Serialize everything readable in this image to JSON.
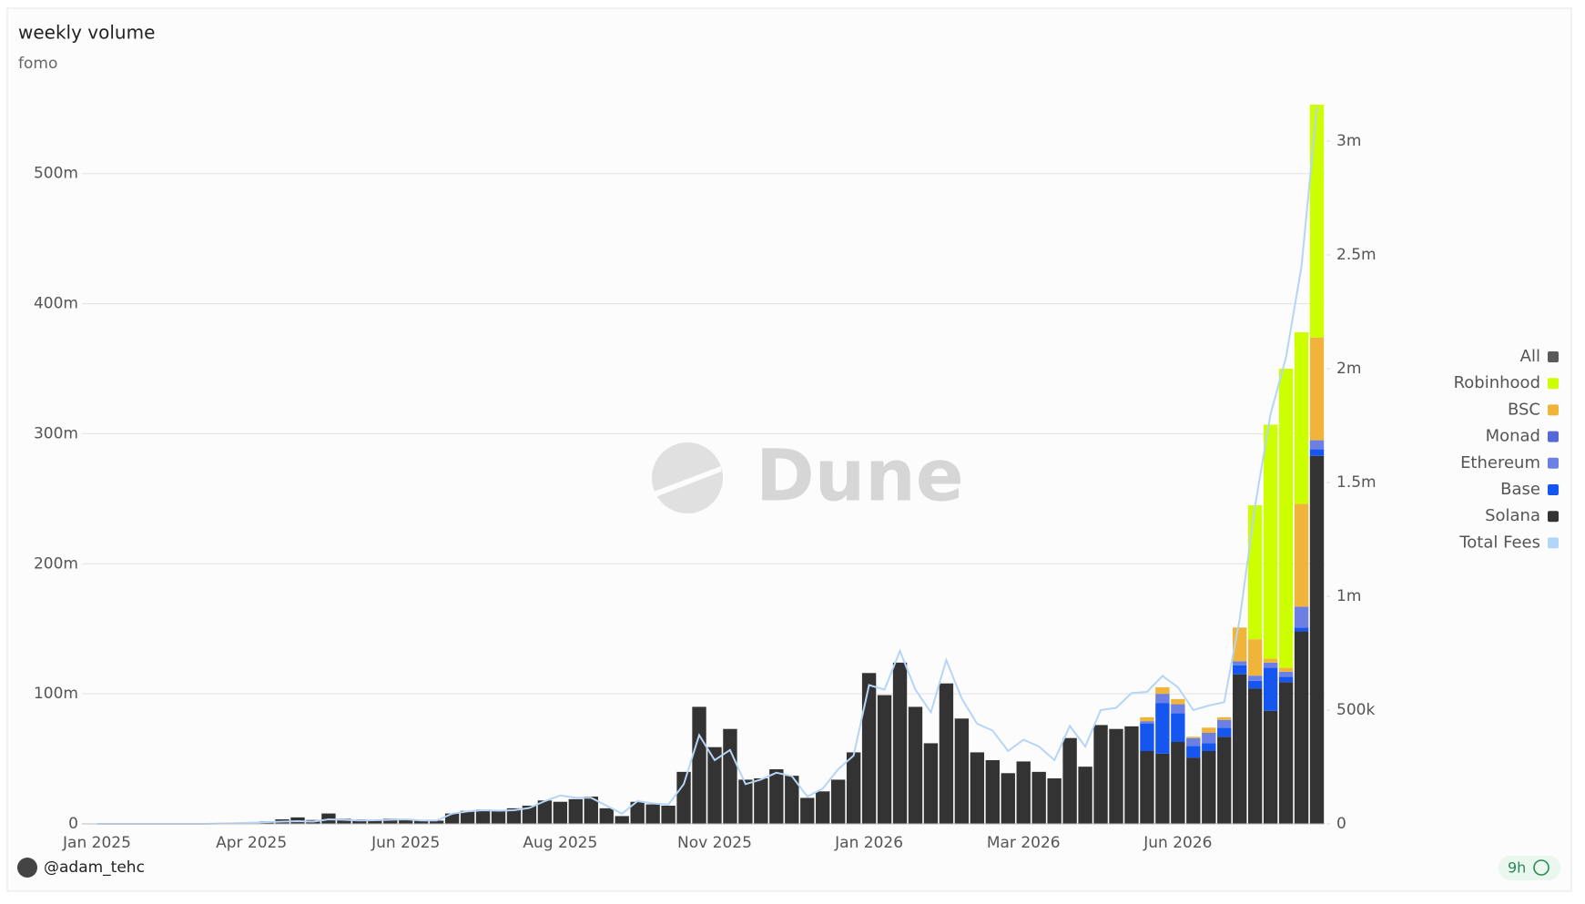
{
  "chart_data": {
    "type": "bar",
    "stacked": true,
    "title": "weekly volume",
    "subtitle": "fomo",
    "watermark": "Dune",
    "legend_all": "All",
    "legend_all_color": "#5a5a5a",
    "legend_position": "right",
    "grid": true,
    "categories": [
      "Jan 2025",
      null,
      null,
      null,
      null,
      null,
      null,
      null,
      null,
      null,
      "Apr 2025",
      null,
      null,
      null,
      null,
      null,
      null,
      null,
      null,
      null,
      "Jun 2025",
      null,
      null,
      null,
      null,
      null,
      null,
      null,
      null,
      null,
      "Aug 2025",
      null,
      null,
      null,
      null,
      null,
      null,
      null,
      null,
      null,
      "Nov 2025",
      null,
      null,
      null,
      null,
      null,
      null,
      null,
      null,
      null,
      "Jan 2026",
      null,
      null,
      null,
      null,
      null,
      null,
      null,
      null,
      null,
      "Mar 2026",
      null,
      null,
      null,
      null,
      null,
      null,
      null,
      null,
      null,
      "Jun 2026",
      null,
      null,
      null,
      null,
      null,
      null,
      null,
      null,
      null
    ],
    "ylim": [
      0,
      560000000
    ],
    "yticks": [
      0,
      {
        "value": 100000000,
        "label": "100m"
      },
      {
        "value": 200000000,
        "label": "200m"
      },
      {
        "value": 300000000,
        "label": "300m"
      },
      {
        "value": 400000000,
        "label": "400m"
      },
      {
        "value": 500000000,
        "label": "500m"
      }
    ],
    "y2lim": [
      0,
      3200000
    ],
    "y2ticks": [
      0,
      {
        "value": 500000,
        "label": "500k"
      },
      {
        "value": 1000000,
        "label": "1m"
      },
      {
        "value": 1500000,
        "label": "1.5m"
      },
      {
        "value": 2000000,
        "label": "2m"
      },
      {
        "value": 2500000,
        "label": "2.5m"
      },
      {
        "value": 3000000,
        "label": "3m"
      }
    ],
    "series": [
      {
        "name": "Solana",
        "color": "#333333",
        "values": [
          0,
          0,
          0,
          0,
          0,
          0,
          0,
          0,
          300000,
          500000,
          1000000,
          2000000,
          3500000,
          5000000,
          3000000,
          8000000,
          4000000,
          3500000,
          3000000,
          4000000,
          3500000,
          2500000,
          2500000,
          8000000,
          10000000,
          11000000,
          10000000,
          12000000,
          14000000,
          18000000,
          17000000,
          19000000,
          21000000,
          12000000,
          6000000,
          17000000,
          15000000,
          14000000,
          40000000,
          90000000,
          59000000,
          73000000,
          34000000,
          35000000,
          42000000,
          37000000,
          20000000,
          25000000,
          34000000,
          55000000,
          116000000,
          99000000,
          124000000,
          90000000,
          62000000,
          108000000,
          81000000,
          55000000,
          49000000,
          39000000,
          48000000,
          40000000,
          35000000,
          66000000,
          44000000,
          76000000,
          73000000,
          75000000,
          56000000,
          54000000,
          63000000,
          51000000,
          56000000,
          67000000,
          115000000,
          104000000,
          87000000,
          109000000,
          148000000,
          283000000
        ]
      },
      {
        "name": "Base",
        "color": "#1556f0",
        "values": [
          0,
          0,
          0,
          0,
          0,
          0,
          0,
          0,
          0,
          0,
          0,
          0,
          0,
          0,
          0,
          0,
          0,
          0,
          0,
          0,
          0,
          0,
          0,
          0,
          0,
          0,
          0,
          0,
          0,
          0,
          0,
          0,
          0,
          0,
          0,
          0,
          0,
          0,
          0,
          0,
          0,
          0,
          0,
          0,
          0,
          0,
          0,
          0,
          0,
          0,
          0,
          0,
          0,
          0,
          0,
          0,
          0,
          0,
          0,
          0,
          0,
          0,
          0,
          0,
          0,
          0,
          0,
          0,
          21000000,
          39000000,
          22000000,
          9000000,
          6000000,
          7000000,
          7000000,
          6000000,
          33000000,
          4000000,
          3000000,
          5000000
        ]
      },
      {
        "name": "Ethereum",
        "color": "#6c7fe3",
        "values": [
          0,
          0,
          0,
          0,
          0,
          0,
          0,
          0,
          0,
          0,
          0,
          0,
          0,
          0,
          0,
          0,
          0,
          0,
          0,
          0,
          0,
          0,
          0,
          0,
          0,
          0,
          0,
          0,
          0,
          0,
          0,
          0,
          0,
          0,
          0,
          0,
          0,
          0,
          0,
          0,
          0,
          0,
          0,
          0,
          0,
          0,
          0,
          0,
          0,
          0,
          0,
          0,
          0,
          0,
          0,
          0,
          0,
          0,
          0,
          0,
          0,
          0,
          0,
          0,
          0,
          0,
          0,
          0,
          2000000,
          7000000,
          7000000,
          6000000,
          8000000,
          6000000,
          3000000,
          4000000,
          4000000,
          4000000,
          16000000,
          7000000
        ]
      },
      {
        "name": "Monad",
        "color": "#5667d6",
        "values": [
          0,
          0,
          0,
          0,
          0,
          0,
          0,
          0,
          0,
          0,
          0,
          0,
          0,
          0,
          0,
          0,
          0,
          0,
          0,
          0,
          0,
          0,
          0,
          0,
          0,
          0,
          0,
          0,
          0,
          0,
          0,
          0,
          0,
          0,
          0,
          0,
          0,
          0,
          0,
          0,
          0,
          0,
          0,
          0,
          0,
          0,
          0,
          0,
          0,
          0,
          0,
          0,
          0,
          0,
          0,
          0,
          0,
          0,
          0,
          0,
          0,
          0,
          0,
          0,
          0,
          0,
          0,
          0,
          0,
          0,
          0,
          0,
          0,
          0,
          0,
          0,
          0,
          0,
          0,
          0
        ]
      },
      {
        "name": "BSC",
        "color": "#f0b43a",
        "values": [
          0,
          0,
          0,
          0,
          0,
          0,
          0,
          0,
          0,
          0,
          0,
          0,
          0,
          0,
          0,
          0,
          0,
          0,
          0,
          0,
          0,
          0,
          0,
          0,
          0,
          0,
          0,
          0,
          0,
          0,
          0,
          0,
          0,
          0,
          0,
          0,
          0,
          0,
          0,
          0,
          0,
          0,
          0,
          0,
          0,
          0,
          0,
          0,
          0,
          0,
          0,
          0,
          0,
          0,
          0,
          0,
          0,
          0,
          0,
          0,
          0,
          0,
          0,
          0,
          0,
          0,
          0,
          0,
          3000000,
          5000000,
          4000000,
          1000000,
          4000000,
          2000000,
          26000000,
          28000000,
          3000000,
          3000000,
          79000000,
          79000000
        ]
      },
      {
        "name": "Robinhood",
        "color": "#ccff00",
        "values": [
          0,
          0,
          0,
          0,
          0,
          0,
          0,
          0,
          0,
          0,
          0,
          0,
          0,
          0,
          0,
          0,
          0,
          0,
          0,
          0,
          0,
          0,
          0,
          0,
          0,
          0,
          0,
          0,
          0,
          0,
          0,
          0,
          0,
          0,
          0,
          0,
          0,
          0,
          0,
          0,
          0,
          0,
          0,
          0,
          0,
          0,
          0,
          0,
          0,
          0,
          0,
          0,
          0,
          0,
          0,
          0,
          0,
          0,
          0,
          0,
          0,
          0,
          0,
          0,
          0,
          0,
          0,
          0,
          0,
          0,
          0,
          0,
          0,
          0,
          0,
          103000000,
          180000000,
          230000000,
          132000000,
          179000000
        ]
      },
      {
        "name": "Total Fees",
        "color": "#b5d5f7",
        "type": "line",
        "axis": "y2",
        "values": [
          0,
          0,
          0,
          0,
          0,
          0,
          0,
          0,
          2000,
          3000,
          5000,
          8000,
          10000,
          12000,
          10000,
          20000,
          18000,
          15000,
          16000,
          18000,
          20000,
          15000,
          15000,
          45000,
          55000,
          60000,
          58000,
          60000,
          70000,
          100000,
          125000,
          115000,
          115000,
          80000,
          45000,
          100000,
          90000,
          85000,
          175000,
          390000,
          280000,
          325000,
          175000,
          195000,
          225000,
          210000,
          120000,
          155000,
          240000,
          300000,
          610000,
          590000,
          760000,
          590000,
          490000,
          720000,
          550000,
          440000,
          410000,
          320000,
          370000,
          340000,
          280000,
          430000,
          340000,
          500000,
          510000,
          575000,
          580000,
          650000,
          600000,
          500000,
          520000,
          535000,
          900000,
          1400000,
          1800000,
          2050000,
          2450000,
          3150000
        ]
      }
    ]
  },
  "footer": {
    "author": "@adam_tehc",
    "age": "9h"
  }
}
